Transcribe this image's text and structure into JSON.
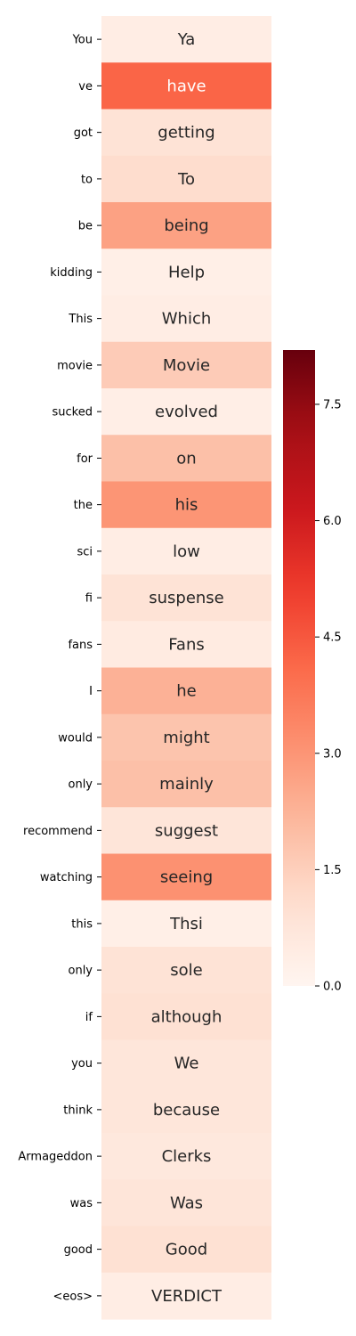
{
  "chart_data": {
    "type": "heatmap",
    "title": "",
    "xlabel": "",
    "ylabel": "",
    "colormap": "Reds",
    "color_range": [
      0,
      8.2
    ],
    "row_labels": [
      "You",
      "ve",
      "got",
      "to",
      "be",
      "kidding",
      "This",
      "movie",
      "sucked",
      "for",
      "the",
      "sci",
      "fi",
      "fans",
      "I",
      "would",
      "only",
      "recommend",
      "watching",
      "this",
      "only",
      "if",
      "you",
      "think",
      "Armageddon",
      "was",
      "good",
      "<eos>"
    ],
    "cell_text": [
      "Ya",
      "have",
      "getting",
      "To",
      "being",
      "Help",
      "Which",
      "Movie",
      "evolved",
      "on",
      "his",
      "low",
      "suspense",
      "Fans",
      "he",
      "might",
      "mainly",
      "suggest",
      "seeing",
      "Thsi",
      "sole",
      "although",
      "We",
      "because",
      "Clerks",
      "Was",
      "Good",
      "VERDICT"
    ],
    "values": [
      0.4,
      4.2,
      0.9,
      1.1,
      2.7,
      0.3,
      0.4,
      1.6,
      0.35,
      1.9,
      3.0,
      0.4,
      0.9,
      0.5,
      2.3,
      1.8,
      1.9,
      0.8,
      3.1,
      0.3,
      0.9,
      1.0,
      0.75,
      0.75,
      0.65,
      0.8,
      1.0,
      0.4
    ],
    "colorbar": {
      "ticks": [
        "0.0",
        "1.5",
        "3.0",
        "4.5",
        "6.0",
        "7.5"
      ],
      "tick_values": [
        0,
        1.5,
        3.0,
        4.5,
        6.0,
        7.5
      ]
    }
  }
}
